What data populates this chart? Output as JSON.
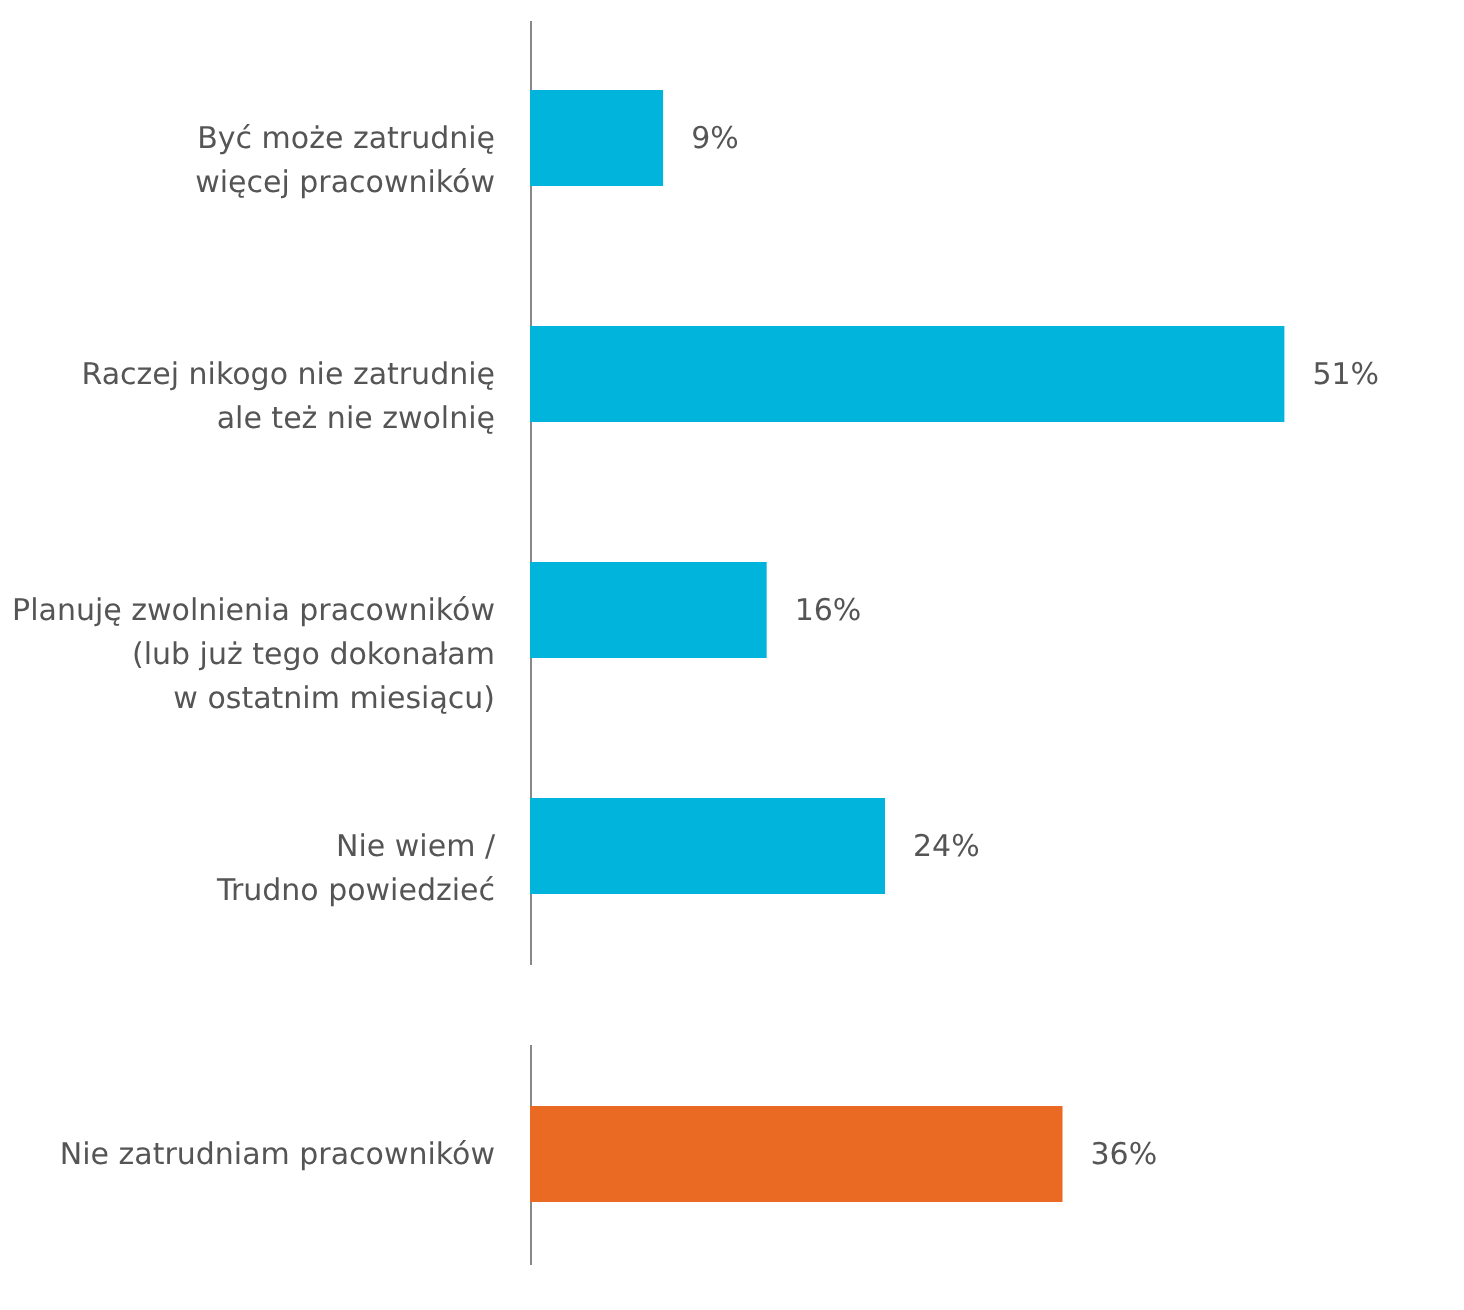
{
  "chart_data": [
    {
      "type": "bar",
      "orientation": "horizontal",
      "categories": [
        "Być może zatrudnię\nwięcej pracowników",
        "Raczej nikogo nie zatrudnię\nale też nie zwolnię",
        "Planuję zwolnienia pracowników\n(lub już tego dokonałam\nw ostatnim miesiącu)",
        "Nie wiem /\nTrudno powiedzieć"
      ],
      "values": [
        9,
        51,
        16,
        24
      ],
      "color": "#00b4dc",
      "value_labels": [
        "9%",
        "51%",
        "16%",
        "24%"
      ],
      "tick_labels": "y"
    },
    {
      "type": "bar",
      "orientation": "horizontal",
      "categories": [
        "Nie zatrudniam pracowników"
      ],
      "values": [
        36
      ],
      "color": "#ea6a24",
      "value_labels": [
        "36%"
      ],
      "tick_labels": "y"
    }
  ]
}
